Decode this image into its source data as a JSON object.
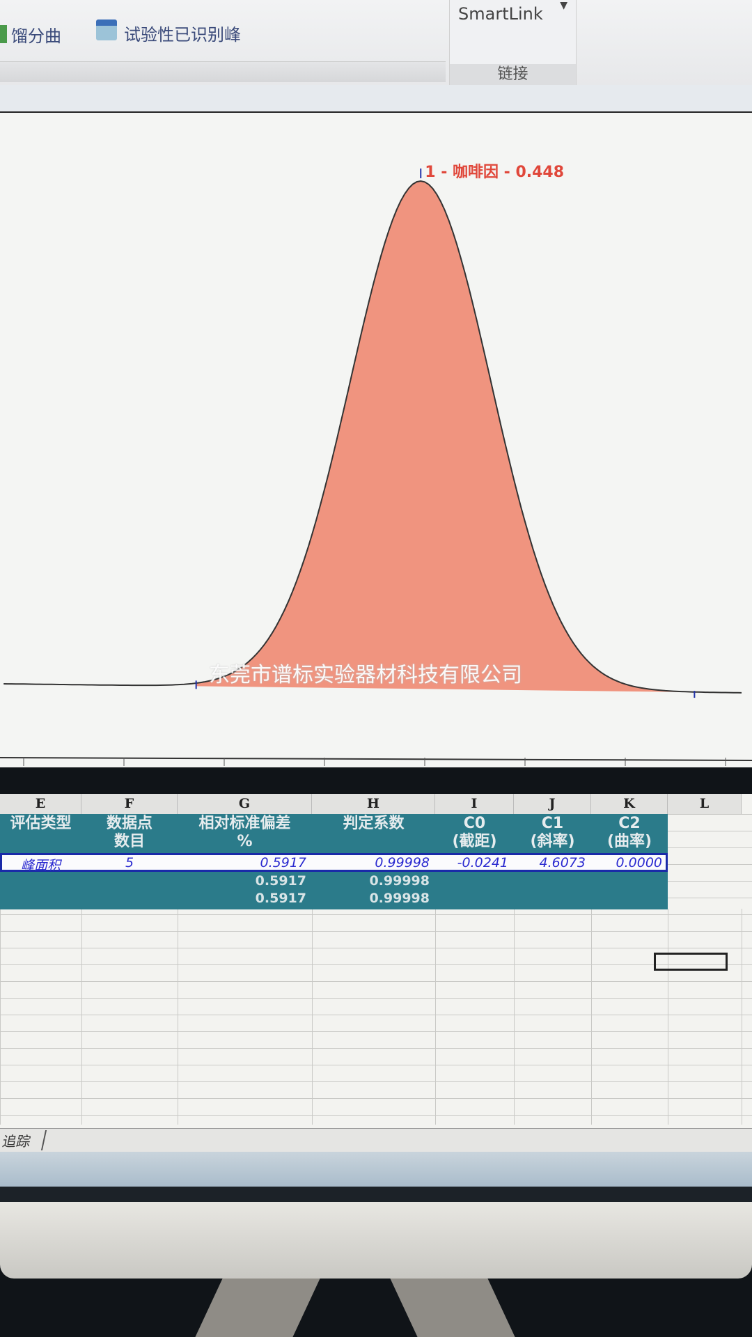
{
  "ribbon": {
    "item_fraction_curve": "馏分曲",
    "item_tentative_peaks": "试验性已识别峰",
    "smartlink_label": "SmartLink",
    "group_link_label": "链接"
  },
  "chart_data": {
    "type": "line",
    "fill_color": "#ef8a72",
    "line_color": "#333333",
    "label_color": "#e0473a",
    "peaks": [
      {
        "number": "1",
        "name": "咖啡因",
        "retention_time": "0.448",
        "label": "1 - 咖啡因 - 0.448"
      }
    ],
    "xlim": [
      0.24,
      0.61
    ],
    "x_ticks": [
      "0.25",
      "0.30",
      "0.35",
      "0.40",
      "0.45",
      "0.50",
      "0.55",
      "0.60"
    ],
    "grid": false
  },
  "watermark": "东莞市谱标实验器材科技有限公司",
  "sheet": {
    "columns": [
      "E",
      "F",
      "G",
      "H",
      "I",
      "J",
      "K",
      "L"
    ],
    "headers": [
      "评估类型",
      "数据点\n数目",
      "相对标准偏差\n%",
      "判定系数",
      "C0\n(截距)",
      "C1\n(斜率)",
      "C2\n(曲率)"
    ],
    "row": [
      "峰面积",
      "5",
      "0.5917",
      "0.99998",
      "-0.0241",
      "4.6073",
      "0.0000"
    ],
    "summary_rows": [
      [
        "0.5917",
        "0.99998"
      ],
      [
        "0.5917",
        "0.99998"
      ]
    ],
    "tab_label": "追踪"
  }
}
